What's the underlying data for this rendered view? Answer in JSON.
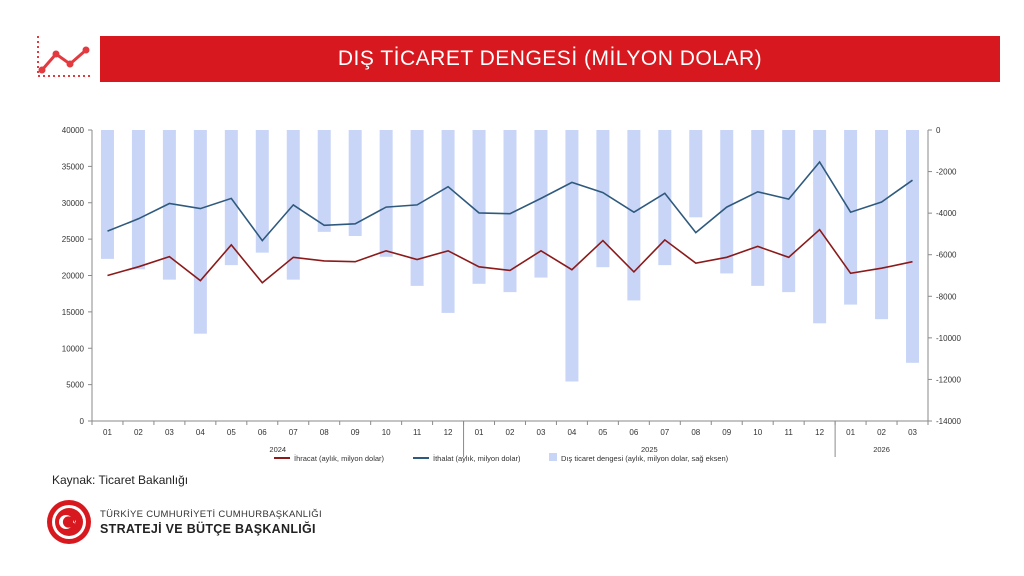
{
  "header": {
    "title": "DIŞ TİCARET DENGESİ (MİLYON DOLAR)"
  },
  "colors": {
    "banner": "#d7191f",
    "ihracat": "#8b1a1a",
    "ithalat": "#2f5a7e",
    "denge": "#c9d5f7"
  },
  "icons": {
    "header_icon": "trend-line-icon",
    "org_seal": "sbb-seal-icon"
  },
  "chart_data": {
    "type": "line",
    "categories": [
      "01",
      "02",
      "03",
      "04",
      "05",
      "06",
      "07",
      "08",
      "09",
      "10",
      "11",
      "12",
      "01",
      "02",
      "03",
      "04",
      "05",
      "06",
      "07",
      "08",
      "09",
      "10",
      "11",
      "12",
      "01",
      "02",
      "03"
    ],
    "year_groups": [
      {
        "label": "2024",
        "start": 0,
        "end": 11
      },
      {
        "label": "2025",
        "start": 12,
        "end": 23
      },
      {
        "label": "2026",
        "start": 24,
        "end": 26
      }
    ],
    "series": [
      {
        "name": "İhracat (aylık, milyon dolar)",
        "type": "line",
        "axis": "left",
        "values": [
          20000,
          21200,
          22600,
          19300,
          24200,
          19000,
          22500,
          22000,
          21900,
          23400,
          22200,
          23400,
          21200,
          20700,
          23400,
          20800,
          24800,
          20500,
          24900,
          21700,
          22500,
          24000,
          22500,
          26300,
          20300,
          21000,
          21900
        ]
      },
      {
        "name": "İthalat (aylık, milyon dolar)",
        "type": "line",
        "axis": "left",
        "values": [
          26100,
          27800,
          29900,
          29200,
          30600,
          24800,
          29700,
          26900,
          27100,
          29400,
          29700,
          32200,
          28600,
          28500,
          30600,
          32800,
          31400,
          28700,
          31300,
          25900,
          29400,
          31500,
          30500,
          35600,
          28700,
          30100,
          33100
        ]
      },
      {
        "name": "Dış ticaret dengesi (aylık, milyon dolar, sağ eksen)",
        "type": "bar",
        "axis": "right",
        "values": [
          -6200,
          -6700,
          -7200,
          -9800,
          -6500,
          -5900,
          -7200,
          -4900,
          -5100,
          -6100,
          -7500,
          -8800,
          -7400,
          -7800,
          -7100,
          -12100,
          -6600,
          -8200,
          -6500,
          -4200,
          -6900,
          -7500,
          -7800,
          -9300,
          -8400,
          -9100,
          -11200
        ]
      }
    ],
    "y_left": {
      "min": 0,
      "max": 40000,
      "ticks": [
        0,
        5000,
        10000,
        15000,
        20000,
        25000,
        30000,
        35000,
        40000
      ]
    },
    "y_right": {
      "min": -14000,
      "max": 0,
      "ticks": [
        0,
        -2000,
        -4000,
        -6000,
        -8000,
        -10000,
        -12000,
        -14000
      ]
    },
    "legend_position": "bottom",
    "grid": false
  },
  "source": {
    "text": "Kaynak: Ticaret Bakanlığı"
  },
  "organization": {
    "line1": "TÜRKİYE CUMHURİYETİ CUMHURBAŞKANLIĞI",
    "line2": "STRATEJİ VE BÜTÇE BAŞKANLIĞI"
  }
}
